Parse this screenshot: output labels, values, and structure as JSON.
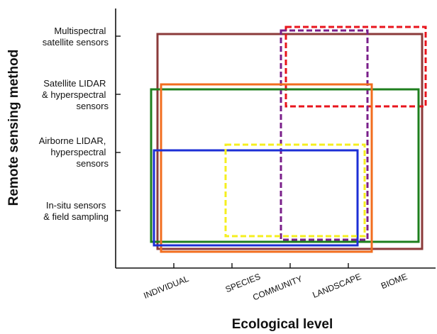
{
  "diagram": {
    "xlabel": "Ecological level",
    "ylabel": "Remote sensing method",
    "x_levels": [
      "INDIVIDUAL",
      "SPECIES",
      "COMMUNITY",
      "LANDSCAPE",
      "BIOME"
    ],
    "y_levels": [
      [
        "Multispectral",
        "satellite sensors"
      ],
      [
        "Satellite LIDAR",
        "& hyperspectral",
        "sensors"
      ],
      [
        "Airborne LIDAR,",
        "hyperspectral",
        "sensors"
      ],
      [
        "In-situ sensors",
        "& field sampling"
      ]
    ],
    "colors": {
      "brown": "#8b3a3a",
      "red": "#e8141c",
      "purple": "#7a1f8a",
      "green": "#1e7f1e",
      "orange": "#f26d1e",
      "blue": "#1c2fd6",
      "yellow": "#f5ef1f"
    }
  }
}
